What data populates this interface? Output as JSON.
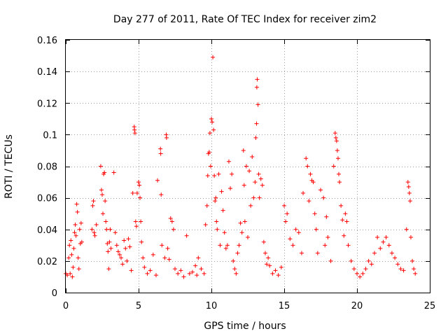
{
  "chart_data": {
    "type": "scatter",
    "title": "Day 277 of 2011, Rate Of TEC Index for receiver zim2",
    "xlabel": "GPS time / hours",
    "ylabel": "ROTI / TECUs",
    "xlim": [
      0,
      25
    ],
    "ylim": [
      0,
      0.16
    ],
    "x_ticks": [
      0,
      5,
      10,
      15,
      20,
      25
    ],
    "x_tick_labels": [
      "0",
      "5",
      "10",
      "15",
      "20",
      "25"
    ],
    "y_ticks": [
      0,
      0.02,
      0.04,
      0.06,
      0.08,
      0.1,
      0.12,
      0.14,
      0.16
    ],
    "y_tick_labels": [
      "0",
      "0.02",
      "0.04",
      "0.06",
      "0.08",
      "0.1",
      "0.12",
      "0.14",
      "0.16"
    ],
    "grid": true,
    "marker": "+",
    "color": "#ff0000",
    "series": [
      {
        "name": "ROTI",
        "points": [
          [
            0.0,
            0.012
          ],
          [
            0.1,
            0.011
          ],
          [
            0.2,
            0.022
          ],
          [
            0.25,
            0.03
          ],
          [
            0.3,
            0.012
          ],
          [
            0.35,
            0.033
          ],
          [
            0.4,
            0.024
          ],
          [
            0.45,
            0.01
          ],
          [
            0.5,
            0.016
          ],
          [
            0.55,
            0.028
          ],
          [
            0.6,
            0.038
          ],
          [
            0.65,
            0.043
          ],
          [
            0.7,
            0.036
          ],
          [
            0.75,
            0.056
          ],
          [
            0.8,
            0.051
          ],
          [
            0.85,
            0.022
          ],
          [
            0.9,
            0.015
          ],
          [
            0.95,
            0.04
          ],
          [
            1.0,
            0.031
          ],
          [
            1.05,
            0.044
          ],
          [
            1.1,
            0.032
          ],
          [
            1.8,
            0.04
          ],
          [
            1.85,
            0.055
          ],
          [
            1.9,
            0.058
          ],
          [
            1.95,
            0.038
          ],
          [
            2.0,
            0.036
          ],
          [
            2.1,
            0.043
          ],
          [
            2.4,
            0.08
          ],
          [
            2.45,
            0.065
          ],
          [
            2.5,
            0.062
          ],
          [
            2.55,
            0.05
          ],
          [
            2.6,
            0.075
          ],
          [
            2.65,
            0.076
          ],
          [
            2.7,
            0.058
          ],
          [
            2.75,
            0.045
          ],
          [
            2.8,
            0.04
          ],
          [
            2.85,
            0.031
          ],
          [
            2.9,
            0.026
          ],
          [
            2.95,
            0.015
          ],
          [
            3.0,
            0.032
          ],
          [
            3.05,
            0.04
          ],
          [
            3.1,
            0.028
          ],
          [
            3.3,
            0.076
          ],
          [
            3.4,
            0.038
          ],
          [
            3.5,
            0.03
          ],
          [
            3.6,
            0.026
          ],
          [
            3.7,
            0.024
          ],
          [
            3.8,
            0.022
          ],
          [
            3.9,
            0.018
          ],
          [
            4.0,
            0.033
          ],
          [
            4.1,
            0.028
          ],
          [
            4.2,
            0.02
          ],
          [
            4.3,
            0.034
          ],
          [
            4.4,
            0.029
          ],
          [
            4.5,
            0.014
          ],
          [
            4.6,
            0.063
          ],
          [
            4.7,
            0.105
          ],
          [
            4.72,
            0.103
          ],
          [
            4.75,
            0.101
          ],
          [
            4.8,
            0.045
          ],
          [
            4.85,
            0.042
          ],
          [
            4.9,
            0.063
          ],
          [
            5.0,
            0.07
          ],
          [
            5.05,
            0.068
          ],
          [
            5.1,
            0.06
          ],
          [
            5.15,
            0.045
          ],
          [
            5.2,
            0.032
          ],
          [
            5.3,
            0.022
          ],
          [
            5.4,
            0.016
          ],
          [
            5.6,
            0.012
          ],
          [
            5.8,
            0.014
          ],
          [
            6.0,
            0.024
          ],
          [
            6.2,
            0.011
          ],
          [
            6.3,
            0.071
          ],
          [
            6.5,
            0.091
          ],
          [
            6.52,
            0.088
          ],
          [
            6.55,
            0.062
          ],
          [
            6.6,
            0.03
          ],
          [
            6.8,
            0.022
          ],
          [
            6.9,
            0.1
          ],
          [
            6.92,
            0.098
          ],
          [
            7.0,
            0.028
          ],
          [
            7.1,
            0.021
          ],
          [
            7.2,
            0.047
          ],
          [
            7.3,
            0.045
          ],
          [
            7.4,
            0.04
          ],
          [
            7.5,
            0.015
          ],
          [
            7.7,
            0.012
          ],
          [
            7.9,
            0.014
          ],
          [
            8.1,
            0.01
          ],
          [
            8.3,
            0.036
          ],
          [
            8.5,
            0.012
          ],
          [
            8.7,
            0.013
          ],
          [
            8.9,
            0.017
          ],
          [
            9.0,
            0.011
          ],
          [
            9.1,
            0.022
          ],
          [
            9.3,
            0.015
          ],
          [
            9.5,
            0.012
          ],
          [
            9.6,
            0.043
          ],
          [
            9.7,
            0.055
          ],
          [
            9.75,
            0.074
          ],
          [
            9.8,
            0.088
          ],
          [
            9.85,
            0.089
          ],
          [
            9.9,
            0.101
          ],
          [
            9.95,
            0.08
          ],
          [
            10.0,
            0.11
          ],
          [
            10.05,
            0.108
          ],
          [
            10.1,
            0.149
          ],
          [
            10.15,
            0.103
          ],
          [
            10.2,
            0.074
          ],
          [
            10.25,
            0.058
          ],
          [
            10.3,
            0.06
          ],
          [
            10.35,
            0.045
          ],
          [
            10.4,
            0.04
          ],
          [
            10.5,
            0.075
          ],
          [
            10.6,
            0.03
          ],
          [
            10.7,
            0.064
          ],
          [
            10.8,
            0.052
          ],
          [
            10.9,
            0.038
          ],
          [
            11.0,
            0.028
          ],
          [
            11.1,
            0.03
          ],
          [
            11.2,
            0.083
          ],
          [
            11.3,
            0.066
          ],
          [
            11.4,
            0.075
          ],
          [
            11.5,
            0.02
          ],
          [
            11.6,
            0.015
          ],
          [
            11.7,
            0.012
          ],
          [
            11.8,
            0.025
          ],
          [
            11.9,
            0.03
          ],
          [
            12.0,
            0.044
          ],
          [
            12.1,
            0.038
          ],
          [
            12.2,
            0.09
          ],
          [
            12.25,
            0.068
          ],
          [
            12.3,
            0.045
          ],
          [
            12.4,
            0.08
          ],
          [
            12.5,
            0.035
          ],
          [
            12.6,
            0.077
          ],
          [
            12.7,
            0.055
          ],
          [
            12.8,
            0.086
          ],
          [
            12.9,
            0.06
          ],
          [
            13.0,
            0.07
          ],
          [
            13.05,
            0.098
          ],
          [
            13.1,
            0.107
          ],
          [
            13.12,
            0.13
          ],
          [
            13.15,
            0.135
          ],
          [
            13.2,
            0.119
          ],
          [
            13.25,
            0.075
          ],
          [
            13.3,
            0.06
          ],
          [
            13.4,
            0.072
          ],
          [
            13.5,
            0.068
          ],
          [
            13.6,
            0.032
          ],
          [
            13.7,
            0.025
          ],
          [
            13.8,
            0.018
          ],
          [
            13.9,
            0.022
          ],
          [
            14.0,
            0.017
          ],
          [
            14.2,
            0.012
          ],
          [
            14.4,
            0.014
          ],
          [
            14.6,
            0.011
          ],
          [
            14.8,
            0.016
          ],
          [
            15.0,
            0.055
          ],
          [
            15.1,
            0.045
          ],
          [
            15.2,
            0.05
          ],
          [
            15.4,
            0.034
          ],
          [
            15.6,
            0.03
          ],
          [
            15.8,
            0.04
          ],
          [
            16.0,
            0.038
          ],
          [
            16.2,
            0.025
          ],
          [
            16.3,
            0.063
          ],
          [
            16.5,
            0.085
          ],
          [
            16.6,
            0.08
          ],
          [
            16.7,
            0.058
          ],
          [
            16.8,
            0.075
          ],
          [
            16.9,
            0.071
          ],
          [
            17.0,
            0.07
          ],
          [
            17.1,
            0.05
          ],
          [
            17.2,
            0.04
          ],
          [
            17.3,
            0.025
          ],
          [
            17.5,
            0.065
          ],
          [
            17.7,
            0.06
          ],
          [
            17.8,
            0.03
          ],
          [
            17.9,
            0.048
          ],
          [
            18.0,
            0.035
          ],
          [
            18.2,
            0.02
          ],
          [
            18.4,
            0.08
          ],
          [
            18.5,
            0.101
          ],
          [
            18.55,
            0.098
          ],
          [
            18.6,
            0.096
          ],
          [
            18.65,
            0.09
          ],
          [
            18.7,
            0.085
          ],
          [
            18.75,
            0.075
          ],
          [
            18.8,
            0.07
          ],
          [
            18.9,
            0.055
          ],
          [
            19.0,
            0.046
          ],
          [
            19.1,
            0.036
          ],
          [
            19.2,
            0.05
          ],
          [
            19.3,
            0.045
          ],
          [
            19.4,
            0.03
          ],
          [
            19.6,
            0.02
          ],
          [
            19.8,
            0.015
          ],
          [
            20.0,
            0.012
          ],
          [
            20.2,
            0.01
          ],
          [
            20.4,
            0.012
          ],
          [
            20.6,
            0.015
          ],
          [
            20.8,
            0.02
          ],
          [
            21.0,
            0.018
          ],
          [
            21.2,
            0.025
          ],
          [
            21.4,
            0.035
          ],
          [
            21.6,
            0.028
          ],
          [
            21.8,
            0.032
          ],
          [
            22.0,
            0.035
          ],
          [
            22.2,
            0.03
          ],
          [
            22.4,
            0.025
          ],
          [
            22.6,
            0.022
          ],
          [
            22.8,
            0.018
          ],
          [
            23.0,
            0.015
          ],
          [
            23.2,
            0.014
          ],
          [
            23.4,
            0.04
          ],
          [
            23.5,
            0.07
          ],
          [
            23.55,
            0.067
          ],
          [
            23.6,
            0.063
          ],
          [
            23.65,
            0.058
          ],
          [
            23.7,
            0.035
          ],
          [
            23.8,
            0.02
          ],
          [
            23.9,
            0.015
          ],
          [
            24.0,
            0.012
          ]
        ]
      }
    ]
  }
}
